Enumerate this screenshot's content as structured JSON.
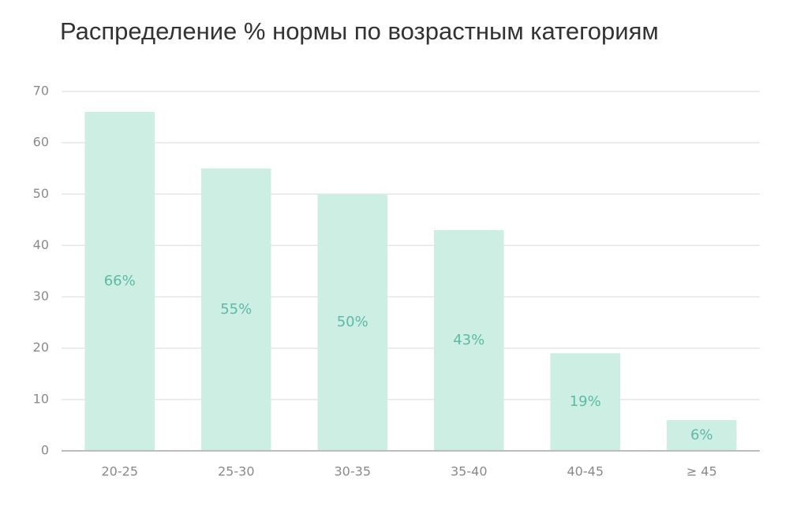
{
  "chart_data": {
    "type": "bar",
    "title": "Распределение % нормы по возрастным категориям",
    "categories": [
      "20-25",
      "25-30",
      "30-35",
      "35-40",
      "40-45",
      "≥ 45"
    ],
    "values": [
      66,
      55,
      50,
      43,
      19,
      6
    ],
    "value_labels": [
      "66%",
      "55%",
      "50%",
      "43%",
      "19%",
      "6%"
    ],
    "color": "#cdeee3",
    "label_color": "#5cbaa5",
    "ylim": [
      0,
      70
    ],
    "yticks": [
      0,
      10,
      20,
      30,
      40,
      50,
      60,
      70
    ],
    "grid": true
  }
}
